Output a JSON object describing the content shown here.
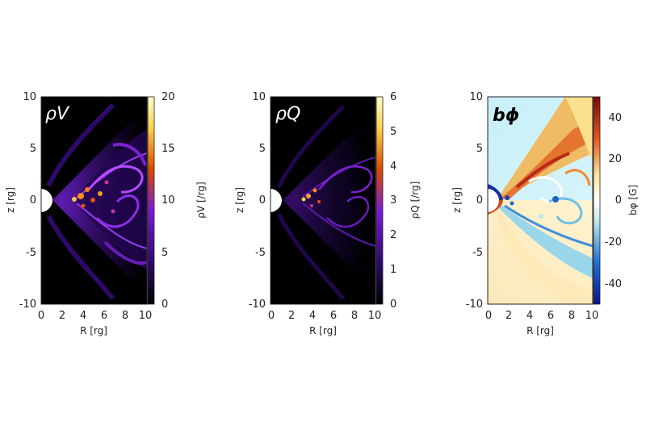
{
  "chart_data": [
    {
      "type": "heatmap",
      "panel_label": "ρV",
      "xlabel": "R [rg]",
      "ylabel": "z [rg]",
      "xlim": [
        0,
        10
      ],
      "ylim": [
        -10,
        10
      ],
      "x_ticks": [
        "0",
        "2",
        "4",
        "6",
        "8",
        "10"
      ],
      "y_ticks": [
        "10",
        "5",
        "0",
        "-5",
        "-10"
      ],
      "colorbar": {
        "label": "ρV [/rg]",
        "range": [
          0,
          20
        ],
        "ticks": [
          "20",
          "15",
          "10",
          "5",
          "0"
        ],
        "colormap": [
          "#000000",
          "#2d0a6b",
          "#7a1ad6",
          "#d94a00",
          "#ffd24a",
          "#ffffcf"
        ]
      }
    },
    {
      "type": "heatmap",
      "panel_label": "ρQ",
      "xlabel": "R [rg]",
      "ylabel": "z [rg]",
      "xlim": [
        0,
        10
      ],
      "ylim": [
        -10,
        10
      ],
      "x_ticks": [
        "0",
        "2",
        "4",
        "6",
        "8",
        "10"
      ],
      "y_ticks": [
        "10",
        "5",
        "0",
        "-5",
        "-10"
      ],
      "colorbar": {
        "label": "ρQ [/rg]",
        "range": [
          0,
          6
        ],
        "ticks": [
          "6",
          "5",
          "4",
          "3",
          "2",
          "1",
          "0"
        ],
        "colormap": [
          "#000000",
          "#2d0a6b",
          "#7a1ad6",
          "#d94a00",
          "#ffd24a",
          "#ffffcf"
        ]
      }
    },
    {
      "type": "heatmap",
      "panel_label": "bϕ",
      "xlabel": "R [rg]",
      "ylabel": "z [rg]",
      "xlim": [
        0,
        10
      ],
      "ylim": [
        -10,
        10
      ],
      "x_ticks": [
        "0",
        "2",
        "4",
        "6",
        "8",
        "10"
      ],
      "y_ticks": [
        "10",
        "5",
        "0",
        "-5",
        "-10"
      ],
      "colorbar": {
        "label": "bφ [G]",
        "range": [
          -50,
          50
        ],
        "ticks": [
          "40",
          "20",
          "0",
          "-20",
          "-40"
        ],
        "colormap": [
          "#08138a",
          "#1f6fd6",
          "#bfe8f2",
          "#ffffff",
          "#fbe7a0",
          "#e4561c",
          "#7a0a0a"
        ]
      }
    }
  ]
}
